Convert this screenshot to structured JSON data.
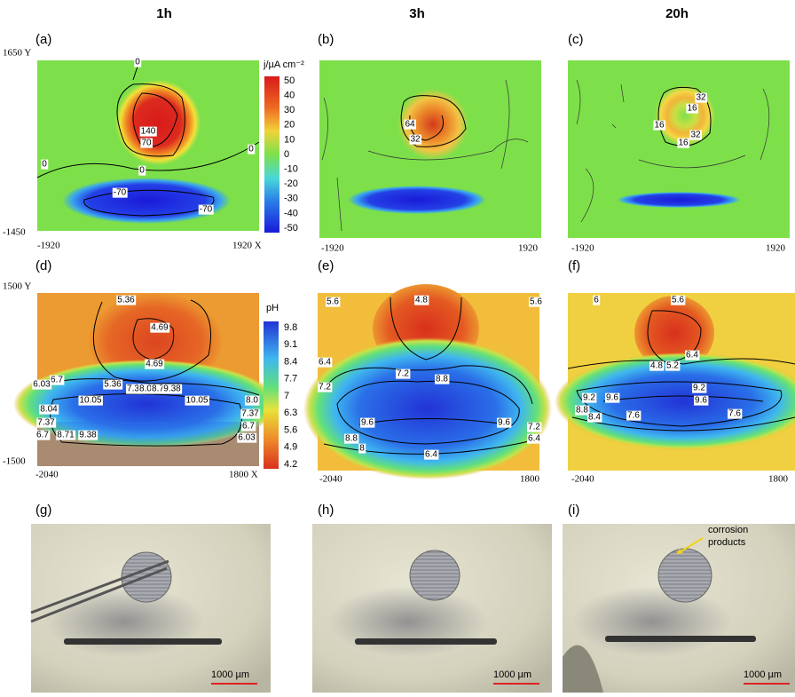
{
  "columns": [
    "1h",
    "3h",
    "20h"
  ],
  "panel_labels": [
    "(a)",
    "(b)",
    "(c)",
    "(d)",
    "(e)",
    "(f)",
    "(g)",
    "(h)",
    "(i)"
  ],
  "current_maps": {
    "y_top": "1650 Y",
    "y_bottom": "-1450",
    "x_left": [
      "-1920",
      "-1920",
      "-1920"
    ],
    "x_right": [
      "1920 X",
      "1920",
      "1920"
    ],
    "colorbar": {
      "title": "j/µA cm⁻²",
      "ticks": [
        "50",
        "40",
        "30",
        "20",
        "10",
        "0",
        "-10",
        "-20",
        "-30",
        "-40",
        "-50"
      ]
    },
    "contour_labels": [
      [
        "0",
        "140",
        "70",
        "0",
        "0",
        "0",
        "-70",
        "-70"
      ],
      [
        "64",
        "32"
      ],
      [
        "32",
        "16",
        "16",
        "32",
        "16"
      ]
    ]
  },
  "ph_maps": {
    "y_top": "1500 Y",
    "y_bottom": "-1500",
    "x_left": [
      "-2040",
      "-2040",
      "-2040"
    ],
    "x_right": [
      "1800 X",
      "1800",
      "1800"
    ],
    "colorbar": {
      "title": "pH",
      "ticks": [
        "9.8",
        "9.1",
        "8.4",
        "7.7",
        "7",
        "6.3",
        "5.6",
        "4.9",
        "4.2"
      ]
    },
    "contour_labels": [
      [
        "5.36",
        "4.69",
        "4.69",
        "6.7",
        "6.03",
        "5.36",
        "7.3",
        "8.0",
        "8.7",
        "9.38",
        "10.05",
        "10.05",
        "8.04",
        "7.37",
        "6.7",
        "8.71",
        "9.38",
        "8.0",
        "7.37",
        "6.7",
        "6.03"
      ],
      [
        "5.6",
        "4.8",
        "5.6",
        "6.4",
        "7.2",
        "7.2",
        "8.8",
        "9.6",
        "9.6",
        "8.8",
        "8",
        "6.4",
        "7.2",
        "6.4"
      ],
      [
        "6",
        "5.6",
        "6.4",
        "4.8",
        "5.2",
        "9.2",
        "9.6",
        "9.2",
        "9.6",
        "8.8",
        "8.4",
        "7.6",
        "7.6"
      ]
    ]
  },
  "photos": {
    "scale_bars": [
      "1000 µm",
      "1000 µm",
      "1000 µm"
    ],
    "annotation": [
      "corrosion",
      "products"
    ]
  }
}
